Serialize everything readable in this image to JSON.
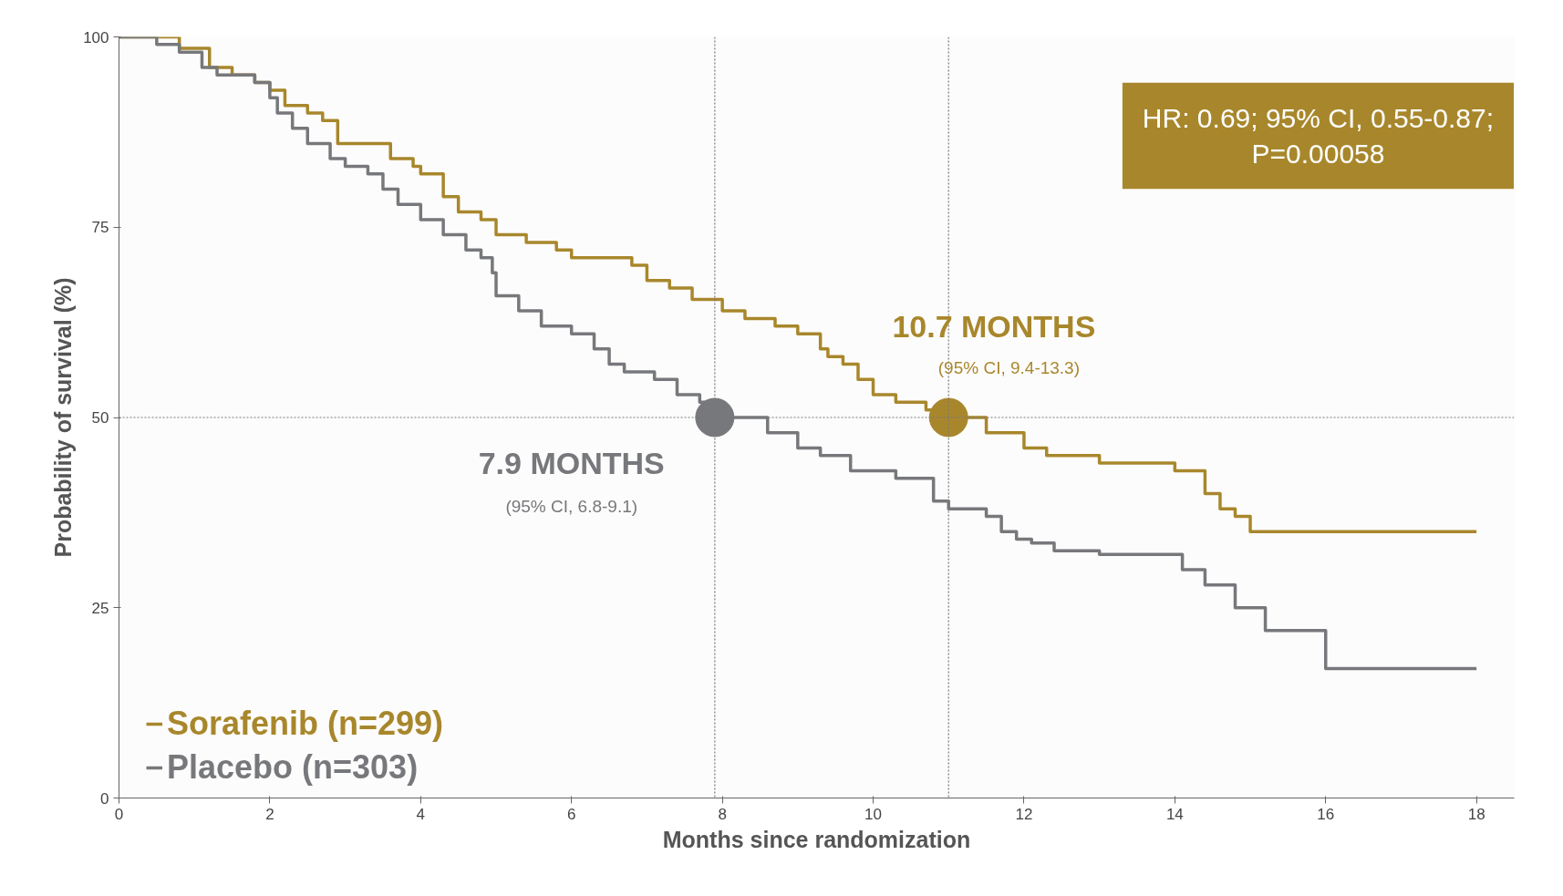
{
  "chart_data": {
    "type": "step",
    "xlabel": "Months since randomization",
    "ylabel": "Probability of survival (%)",
    "xlim": [
      0,
      18.5
    ],
    "ylim": [
      0,
      100
    ],
    "xticks": [
      0,
      2,
      4,
      6,
      8,
      10,
      12,
      14,
      16,
      18
    ],
    "yticks": [
      0,
      25,
      50,
      75,
      100
    ],
    "grid": false,
    "legend": "bottom left",
    "line_style": "solid",
    "series": [
      {
        "name": "Sorafenib (n=299)",
        "color": "#a8872c",
        "x": [
          0,
          0.8,
          1.2,
          1.5,
          1.8,
          2.0,
          2.2,
          2.5,
          2.7,
          2.9,
          3.6,
          3.9,
          4.0,
          4.3,
          4.5,
          4.8,
          5.0,
          5.4,
          5.8,
          6.0,
          6.8,
          7.0,
          7.3,
          7.6,
          8.0,
          8.3,
          8.7,
          9.0,
          9.3,
          9.4,
          9.6,
          9.8,
          10.0,
          10.3,
          10.7,
          11.0,
          11.5,
          12.0,
          12.3,
          13.0,
          14.0,
          14.4,
          14.6,
          14.8,
          15.0,
          18.0
        ],
        "values": [
          100,
          98.5,
          96,
          95,
          94,
          93,
          91,
          90,
          89,
          86,
          84,
          83,
          82,
          79,
          77,
          76,
          74,
          73,
          72,
          71,
          70,
          68,
          67,
          65.5,
          64,
          63,
          62,
          61,
          59,
          58,
          57,
          55,
          53,
          52,
          51,
          50,
          48,
          46,
          45,
          44,
          43,
          40,
          38,
          37,
          35,
          35
        ]
      },
      {
        "name": "Placebo (n=303)",
        "color": "#77787b",
        "x": [
          0,
          0.5,
          0.8,
          1.1,
          1.3,
          1.8,
          2.0,
          2.1,
          2.3,
          2.5,
          2.8,
          3.0,
          3.3,
          3.5,
          3.7,
          4.0,
          4.3,
          4.6,
          4.8,
          4.95,
          5.0,
          5.3,
          5.6,
          6.0,
          6.3,
          6.5,
          6.7,
          7.1,
          7.4,
          7.7,
          8.0,
          8.6,
          9.0,
          9.3,
          9.7,
          10.3,
          10.8,
          11.0,
          11.5,
          11.7,
          11.9,
          12.1,
          12.4,
          13.0,
          14.1,
          14.4,
          14.8,
          15.2,
          16.0,
          18.0
        ],
        "values": [
          100,
          99,
          98,
          96,
          95,
          94,
          92,
          90,
          88,
          86,
          84,
          83,
          82,
          80,
          78,
          76,
          74,
          72,
          71,
          69,
          66,
          64,
          62,
          61,
          59,
          57,
          56,
          55,
          53,
          52,
          50,
          48,
          46,
          45,
          43,
          42,
          39,
          38,
          37,
          35,
          34,
          33.5,
          32.5,
          32,
          30,
          28,
          25,
          22,
          17,
          17
        ]
      },
      {
        "type": "scatter",
        "color": "#77787b",
        "x": [
          7.9
        ],
        "values": [
          50
        ]
      },
      {
        "type": "scatter",
        "color": "#a8872c",
        "x": [
          11.0
        ],
        "values": [
          50
        ]
      }
    ],
    "ref_lines": [
      {
        "axis": "y",
        "value": 50,
        "label": null
      },
      {
        "axis": "x",
        "value": 7.9,
        "label": null
      },
      {
        "axis": "x",
        "value": 11.0,
        "label": null
      }
    ],
    "annotations": [
      "HR: 0.69; 95% CI, 0.55-0.87;\nP=0.00058",
      "10.7 MONTHS",
      "(95% CI, 9.4-13.3)",
      "7.9 MONTHS",
      "(95% CI, 6.8-9.1)"
    ]
  }
}
